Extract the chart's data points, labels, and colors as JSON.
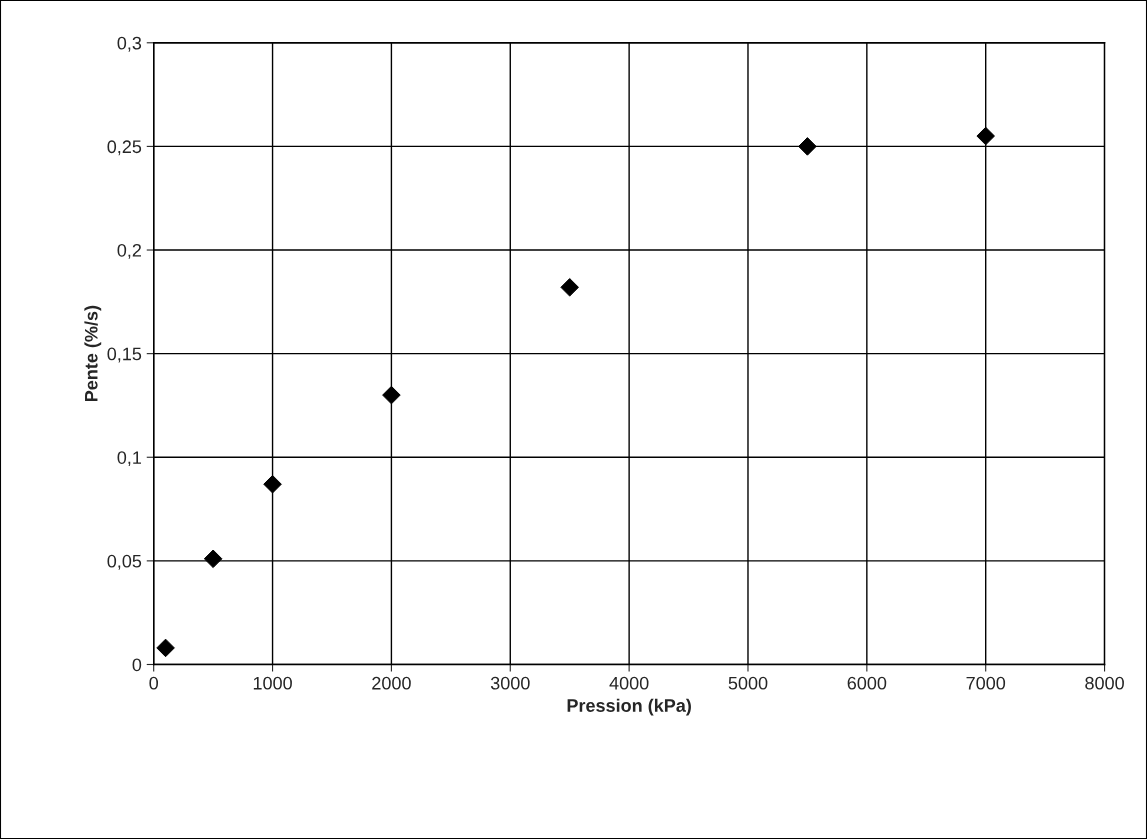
{
  "chart_data": {
    "type": "scatter",
    "xlabel": "Pression (kPa)",
    "ylabel": "Pente (%/s)",
    "x": [
      100,
      500,
      1000,
      2000,
      3500,
      5500,
      7000
    ],
    "series": [
      {
        "color": "#000000",
        "values": [
          0.008,
          0.051,
          0.087,
          0.13,
          0.182,
          0.25,
          0.255
        ]
      }
    ],
    "marker": "diamond",
    "grid": true,
    "xlim": [
      0,
      8000
    ],
    "xticks": [
      0,
      1000,
      2000,
      3000,
      4000,
      5000,
      6000,
      7000,
      8000
    ],
    "ylim": [
      0,
      0.3
    ],
    "yticks": [
      0,
      {
        "value": 0.05,
        "label": "0,05"
      },
      {
        "value": 0.1,
        "label": "0,1"
      },
      {
        "value": 0.15,
        "label": "0,15"
      },
      {
        "value": 0.2,
        "label": "0,2"
      },
      {
        "value": 0.25,
        "label": "0,25"
      },
      {
        "value": 0.3,
        "label": "0,3"
      }
    ]
  }
}
